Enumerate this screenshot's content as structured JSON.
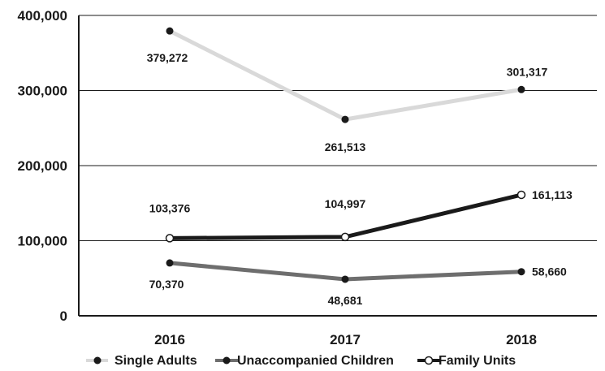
{
  "chart_data": {
    "type": "line",
    "categories": [
      "2016",
      "2017",
      "2018"
    ],
    "ylim": [
      0,
      400000
    ],
    "yticks": [
      0,
      100000,
      200000,
      300000,
      400000
    ],
    "ytick_labels": [
      "0",
      "100,000",
      "200,000",
      "300,000",
      "400,000"
    ],
    "grid": true,
    "legend_position": "bottom",
    "series": [
      {
        "name": "Single Adults",
        "values": [
          379272,
          261513,
          301317
        ],
        "labels": [
          "379,272",
          "261,513",
          "301,317"
        ],
        "color": "#d9d9d9",
        "marker": "filled",
        "marker_color": "#1a1a1a"
      },
      {
        "name": "Unaccompanied Children",
        "values": [
          70370,
          48681,
          58660
        ],
        "labels": [
          "70,370",
          "48,681",
          "58,660"
        ],
        "color": "#6e6e6e",
        "marker": "filled",
        "marker_color": "#1a1a1a"
      },
      {
        "name": "Family Units",
        "values": [
          103376,
          104997,
          161113
        ],
        "labels": [
          "103,376",
          "104,997",
          "161,113"
        ],
        "color": "#1a1a1a",
        "marker": "hollow",
        "marker_color": "#1a1a1a"
      }
    ]
  }
}
